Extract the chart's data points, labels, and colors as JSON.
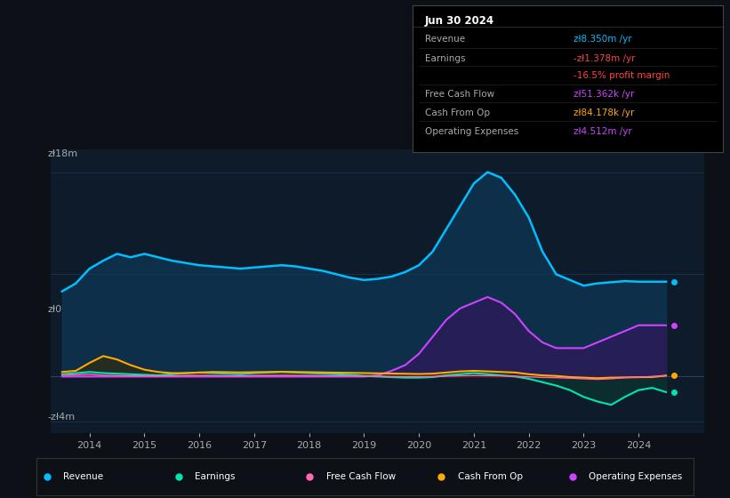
{
  "bg_color": "#0d1117",
  "plot_bg": "#0d1b2a",
  "ylabel_top": "zł18m",
  "ylabel_zero": "zł0",
  "ylabel_bot": "-zł4m",
  "ylim": [
    -5000000,
    20000000
  ],
  "xlim": [
    2013.3,
    2025.2
  ],
  "info_box": {
    "date": "Jun 30 2024",
    "rows": [
      {
        "label": "Revenue",
        "value": "zł8.350m /yr",
        "val_color": "#00bfff"
      },
      {
        "label": "Earnings",
        "value": "-zł1.378m /yr",
        "val_color": "#ff4444"
      },
      {
        "label": "",
        "value": "-16.5% profit margin",
        "val_color": "#ff4444"
      },
      {
        "label": "Free Cash Flow",
        "value": "zł51.362k /yr",
        "val_color": "#cc44ff"
      },
      {
        "label": "Cash From Op",
        "value": "zł84.178k /yr",
        "val_color": "#ffaa00"
      },
      {
        "label": "Operating Expenses",
        "value": "zł4.512m /yr",
        "val_color": "#cc44ff"
      }
    ]
  },
  "revenue_color": "#00bfff",
  "revenue_fill": "#0d3a5a",
  "earnings_color": "#00e5b0",
  "earnings_fill": "#0a3d30",
  "fcf_color": "#ff69b4",
  "fcf_fill": "#5a1030",
  "cashfromop_color": "#ffaa00",
  "cashfromop_fill": "#3a2a00",
  "opex_color": "#cc44ff",
  "opex_fill": "#2d1a5a",
  "years": [
    2013.5,
    2013.75,
    2014.0,
    2014.25,
    2014.5,
    2014.75,
    2015.0,
    2015.25,
    2015.5,
    2015.75,
    2016.0,
    2016.25,
    2016.5,
    2016.75,
    2017.0,
    2017.25,
    2017.5,
    2017.75,
    2018.0,
    2018.25,
    2018.5,
    2018.75,
    2019.0,
    2019.25,
    2019.5,
    2019.75,
    2020.0,
    2020.25,
    2020.5,
    2020.75,
    2021.0,
    2021.25,
    2021.5,
    2021.75,
    2022.0,
    2022.25,
    2022.5,
    2022.75,
    2023.0,
    2023.25,
    2023.5,
    2023.75,
    2024.0,
    2024.25,
    2024.5
  ],
  "revenue": [
    7500000,
    8200000,
    9500000,
    10200000,
    10800000,
    10500000,
    10800000,
    10500000,
    10200000,
    10000000,
    9800000,
    9700000,
    9600000,
    9500000,
    9600000,
    9700000,
    9800000,
    9700000,
    9500000,
    9300000,
    9000000,
    8700000,
    8500000,
    8600000,
    8800000,
    9200000,
    9800000,
    11000000,
    13000000,
    15000000,
    17000000,
    18000000,
    17500000,
    16000000,
    14000000,
    11000000,
    9000000,
    8500000,
    8000000,
    8200000,
    8300000,
    8400000,
    8350000,
    8350000,
    8350000
  ],
  "earnings": [
    200000,
    300000,
    400000,
    300000,
    250000,
    200000,
    150000,
    100000,
    200000,
    300000,
    350000,
    300000,
    250000,
    200000,
    300000,
    350000,
    400000,
    350000,
    300000,
    250000,
    200000,
    150000,
    50000,
    0,
    -50000,
    -100000,
    -100000,
    -50000,
    100000,
    200000,
    300000,
    200000,
    100000,
    0,
    -200000,
    -500000,
    -800000,
    -1200000,
    -1800000,
    -2200000,
    -2500000,
    -1800000,
    -1200000,
    -1000000,
    -1378000
  ],
  "fcf": [
    100000,
    150000,
    200000,
    100000,
    80000,
    60000,
    50000,
    40000,
    60000,
    80000,
    90000,
    80000,
    70000,
    60000,
    80000,
    90000,
    100000,
    90000,
    80000,
    70000,
    60000,
    50000,
    20000,
    10000,
    -10000,
    -20000,
    -20000,
    -10000,
    30000,
    60000,
    80000,
    70000,
    50000,
    20000,
    -30000,
    -80000,
    -100000,
    -150000,
    -200000,
    -250000,
    -200000,
    -100000,
    -50000,
    0,
    51362
  ],
  "cashfromop": [
    400000,
    500000,
    1200000,
    1800000,
    1500000,
    1000000,
    600000,
    400000,
    300000,
    300000,
    350000,
    400000,
    380000,
    360000,
    380000,
    400000,
    420000,
    400000,
    380000,
    360000,
    340000,
    320000,
    300000,
    280000,
    260000,
    240000,
    220000,
    250000,
    350000,
    450000,
    500000,
    450000,
    400000,
    350000,
    200000,
    100000,
    50000,
    -50000,
    -100000,
    -150000,
    -100000,
    -80000,
    -60000,
    -50000,
    84178
  ],
  "opex": [
    0,
    0,
    0,
    0,
    0,
    0,
    0,
    0,
    0,
    0,
    0,
    0,
    0,
    0,
    0,
    0,
    0,
    0,
    0,
    0,
    0,
    0,
    0,
    100000,
    500000,
    1000000,
    2000000,
    3500000,
    5000000,
    6000000,
    6500000,
    7000000,
    6500000,
    5500000,
    4000000,
    3000000,
    2500000,
    2500000,
    2500000,
    3000000,
    3500000,
    4000000,
    4512000,
    4512000,
    4512000
  ],
  "legend_entries": [
    {
      "label": "Revenue",
      "color": "#00bfff"
    },
    {
      "label": "Earnings",
      "color": "#00e5b0"
    },
    {
      "label": "Free Cash Flow",
      "color": "#ff69b4"
    },
    {
      "label": "Cash From Op",
      "color": "#ffaa00"
    },
    {
      "label": "Operating Expenses",
      "color": "#cc44ff"
    }
  ]
}
